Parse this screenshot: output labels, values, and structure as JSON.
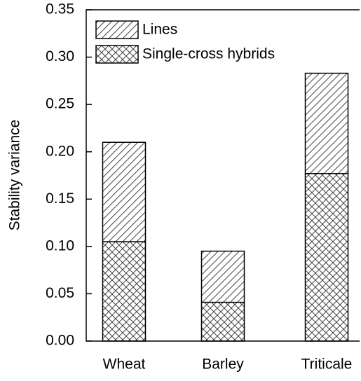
{
  "chart_data": {
    "type": "stacked_bar",
    "y_label": "Stability variance",
    "categories": [
      "Wheat",
      "Barley",
      "Triticale"
    ],
    "series": [
      {
        "name": "Single-cross hybrids",
        "color": "#444444",
        "hatch": "x",
        "values": [
          0.105,
          0.041,
          0.177
        ]
      },
      {
        "name": "Lines",
        "color": "#444444",
        "hatch": "/",
        "values": [
          0.105,
          0.054,
          0.106
        ]
      }
    ],
    "legend_order": [
      1,
      0
    ],
    "legend": "upper left",
    "ylim": [
      0,
      0.35
    ],
    "yticks": [
      {
        "value": 0,
        "label": "0.00"
      },
      {
        "value": 0.05,
        "label": "0.05"
      },
      {
        "value": 0.1,
        "label": "0.10"
      },
      {
        "value": 0.15,
        "label": "0.15"
      },
      {
        "value": 0.2,
        "label": "0.20"
      },
      {
        "value": 0.25,
        "label": "0.25"
      },
      {
        "value": 0.3,
        "label": "0.30"
      },
      {
        "value": 0.35,
        "label": "0.35"
      }
    ]
  }
}
